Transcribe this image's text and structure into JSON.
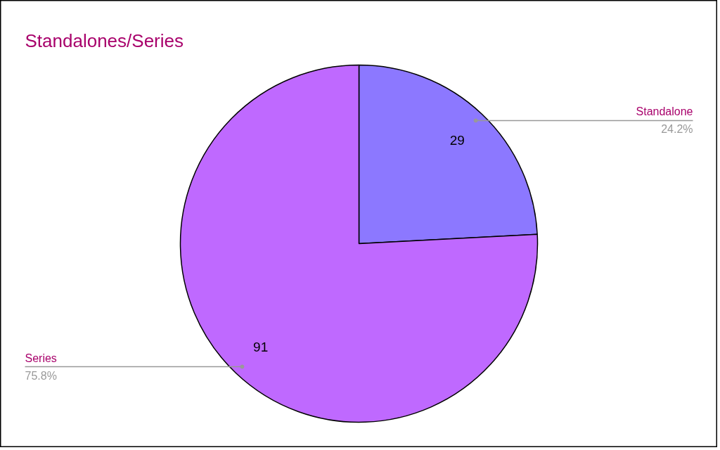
{
  "chart_data": {
    "type": "pie",
    "title": "Standalones/Series",
    "categories": [
      "Standalone",
      "Series"
    ],
    "values": [
      29,
      91
    ],
    "colors": [
      "#8c78ff",
      "#bf69ff"
    ],
    "data_labels": true,
    "annotations": [
      "24.2%",
      "75.8%"
    ]
  }
}
